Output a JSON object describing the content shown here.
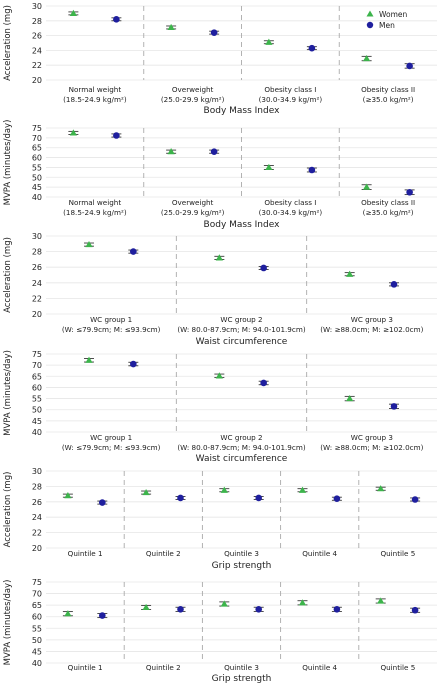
{
  "legend": {
    "position": "top-right",
    "items": [
      {
        "label": "Women",
        "color": "#3cb44b",
        "marker": "triangle"
      },
      {
        "label": "Men",
        "color": "#1f1f9e",
        "marker": "circle"
      }
    ]
  },
  "chart_data": [
    {
      "type": "scatter",
      "xlabel": "Body Mass Index",
      "ylabel": "Acceleration (mg)",
      "ylim": [
        20,
        30
      ],
      "yticks": [
        20,
        22,
        24,
        26,
        28,
        30
      ],
      "grid": true,
      "categories": [
        [
          "Normal weight",
          "(18.5-24.9 kg/m²)"
        ],
        [
          "Overweight",
          "(25.0-29.9 kg/m²)"
        ],
        [
          "Obesity class I",
          "(30.0-34.9 kg/m²)"
        ],
        [
          "Obesity class II",
          "(≥35.0 kg/m²)"
        ]
      ],
      "series": [
        {
          "name": "Women",
          "values": [
            29.0,
            27.1,
            25.1,
            22.9
          ],
          "ci": [
            0.2,
            0.2,
            0.2,
            0.3
          ]
        },
        {
          "name": "Men",
          "values": [
            28.2,
            26.4,
            24.3,
            21.9
          ],
          "ci": [
            0.2,
            0.2,
            0.2,
            0.3
          ]
        }
      ]
    },
    {
      "type": "scatter",
      "xlabel": "Body Mass Index",
      "ylabel": "MVPA (minutes/day)",
      "ylim": [
        40,
        75
      ],
      "yticks": [
        40,
        45,
        50,
        55,
        60,
        65,
        70,
        75
      ],
      "grid": true,
      "categories": [
        [
          "Normal weight",
          "(18.5-24.9 kg/m²)"
        ],
        [
          "Overweight",
          "(25.0-29.9 kg/m²)"
        ],
        [
          "Obesity class I",
          "(30.0-34.9 kg/m²)"
        ],
        [
          "Obesity class II",
          "(≥35.0 kg/m²)"
        ]
      ],
      "series": [
        {
          "name": "Women",
          "values": [
            72.5,
            63.0,
            55.0,
            45.0
          ],
          "ci": [
            0.8,
            0.8,
            1.0,
            1.2
          ]
        },
        {
          "name": "Men",
          "values": [
            71.2,
            63.0,
            53.7,
            42.4
          ],
          "ci": [
            0.8,
            0.8,
            1.0,
            1.2
          ]
        }
      ]
    },
    {
      "type": "scatter",
      "xlabel": "Waist circumference",
      "ylabel": "Acceleration (mg)",
      "ylim": [
        20,
        30
      ],
      "yticks": [
        20,
        22,
        24,
        26,
        28,
        30
      ],
      "grid": true,
      "categories": [
        [
          "WC group 1",
          "(W: ≤79.9cm; M: ≤93.9cm)"
        ],
        [
          "WC group 2",
          "(W: 80.0-87.9cm; M: 94.0-101.9cm)"
        ],
        [
          "WC group 3",
          "(W: ≥88.0cm; M: ≥102.0cm)"
        ]
      ],
      "series": [
        {
          "name": "Women",
          "values": [
            28.9,
            27.2,
            25.1
          ],
          "ci": [
            0.2,
            0.2,
            0.2
          ]
        },
        {
          "name": "Men",
          "values": [
            28.0,
            25.9,
            23.8
          ],
          "ci": [
            0.2,
            0.2,
            0.2
          ]
        }
      ]
    },
    {
      "type": "scatter",
      "xlabel": "Waist circumference",
      "ylabel": "MVPA (minutes/day)",
      "ylim": [
        40,
        75
      ],
      "yticks": [
        40,
        45,
        50,
        55,
        60,
        65,
        70,
        75
      ],
      "grid": true,
      "categories": [
        [
          "WC group 1",
          "(W: ≤79.9cm; M: ≤93.9cm)"
        ],
        [
          "WC group 2",
          "(W: 80.0-87.9cm; M: 94.0-101.9cm)"
        ],
        [
          "WC group 3",
          "(W: ≥88.0cm; M: ≥102.0cm)"
        ]
      ],
      "series": [
        {
          "name": "Women",
          "values": [
            72.2,
            65.2,
            55.0
          ],
          "ci": [
            0.8,
            0.8,
            1.0
          ]
        },
        {
          "name": "Men",
          "values": [
            70.5,
            62.0,
            51.5
          ],
          "ci": [
            0.8,
            0.8,
            1.0
          ]
        }
      ]
    },
    {
      "type": "scatter",
      "xlabel": "Grip strength",
      "ylabel": "Acceleration (mg)",
      "ylim": [
        20,
        30
      ],
      "yticks": [
        20,
        22,
        24,
        26,
        28,
        30
      ],
      "grid": true,
      "categories": [
        [
          "Quintile 1"
        ],
        [
          "Quintile 2"
        ],
        [
          "Quintile 3"
        ],
        [
          "Quintile 4"
        ],
        [
          "Quintile 5"
        ]
      ],
      "series": [
        {
          "name": "Women",
          "values": [
            26.8,
            27.2,
            27.5,
            27.5,
            27.7
          ],
          "ci": [
            0.2,
            0.2,
            0.2,
            0.2,
            0.2
          ]
        },
        {
          "name": "Men",
          "values": [
            25.9,
            26.5,
            26.5,
            26.4,
            26.3
          ],
          "ci": [
            0.2,
            0.2,
            0.2,
            0.2,
            0.2
          ]
        }
      ]
    },
    {
      "type": "scatter",
      "xlabel": "Grip strength",
      "ylabel": "MVPA (minutes/day)",
      "ylim": [
        40,
        75
      ],
      "yticks": [
        40,
        45,
        50,
        55,
        60,
        65,
        70,
        75
      ],
      "grid": true,
      "categories": [
        [
          "Quintile 1"
        ],
        [
          "Quintile 2"
        ],
        [
          "Quintile 3"
        ],
        [
          "Quintile 4"
        ],
        [
          "Quintile 5"
        ]
      ],
      "series": [
        {
          "name": "Women",
          "values": [
            61.3,
            64.0,
            65.5,
            66.0,
            66.8
          ],
          "ci": [
            0.9,
            0.9,
            0.9,
            0.9,
            0.9
          ]
        },
        {
          "name": "Men",
          "values": [
            60.5,
            63.2,
            63.2,
            63.2,
            62.8
          ],
          "ci": [
            0.9,
            0.9,
            0.9,
            0.9,
            0.9
          ]
        }
      ]
    }
  ]
}
